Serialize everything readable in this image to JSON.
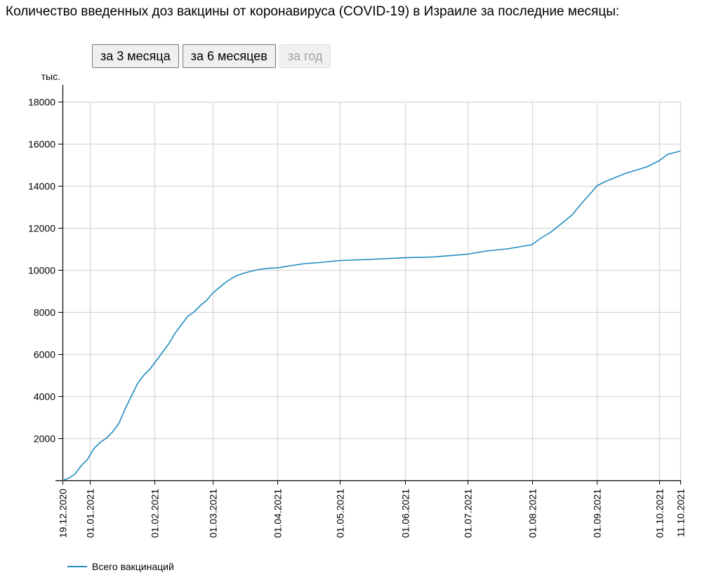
{
  "page": {
    "title": "Количество введенных доз вакцины от коронавируса (COVID-19) в Израиле за последние месяцы:"
  },
  "range_buttons": [
    {
      "label": "за 3 месяца",
      "disabled": false
    },
    {
      "label": "за 6 месяцев",
      "disabled": false
    },
    {
      "label": "за год",
      "disabled": true
    }
  ],
  "colors": {
    "series": "#1f8bbf",
    "grid": "#d7d7d7",
    "axis": "#000000"
  },
  "chart_data": {
    "type": "line",
    "title": "",
    "xlabel": "",
    "ylabel": "тыс.",
    "x_type": "date",
    "xlim": [
      "2020-12-19",
      "2021-10-11"
    ],
    "ylim": [
      0,
      18000
    ],
    "y_ticks": [
      2000,
      4000,
      6000,
      8000,
      10000,
      12000,
      14000,
      16000,
      18000
    ],
    "y_tick_labels": [
      "2000",
      "4000",
      "6000",
      "8000",
      "10000",
      "12000",
      "14000",
      "16000",
      "18000"
    ],
    "x_ticks": [
      "2020-12-19",
      "2021-01-01",
      "2021-02-01",
      "2021-03-01",
      "2021-04-01",
      "2021-05-01",
      "2021-06-01",
      "2021-07-01",
      "2021-08-01",
      "2021-09-01",
      "2021-10-01",
      "2021-10-11"
    ],
    "x_tick_labels": [
      "19.12.2020",
      "01.01.2021",
      "01.02.2021",
      "01.03.2021",
      "01.04.2021",
      "01.05.2021",
      "01.06.2021",
      "01.07.2021",
      "01.08.2021",
      "01.09.2021",
      "01.10.2021",
      "11.10.2021"
    ],
    "grid": true,
    "legend": "bottom-left",
    "series": [
      {
        "name": "Всего вакцинаций",
        "x": [
          "2020-12-19",
          "2020-12-22",
          "2020-12-25",
          "2020-12-28",
          "2020-12-31",
          "2021-01-03",
          "2021-01-06",
          "2021-01-09",
          "2021-01-12",
          "2021-01-15",
          "2021-01-18",
          "2021-01-21",
          "2021-01-24",
          "2021-01-27",
          "2021-01-30",
          "2021-02-02",
          "2021-02-05",
          "2021-02-08",
          "2021-02-11",
          "2021-02-14",
          "2021-02-17",
          "2021-02-20",
          "2021-02-23",
          "2021-02-26",
          "2021-03-01",
          "2021-03-04",
          "2021-03-07",
          "2021-03-10",
          "2021-03-13",
          "2021-03-16",
          "2021-03-19",
          "2021-03-22",
          "2021-03-25",
          "2021-03-28",
          "2021-04-01",
          "2021-04-07",
          "2021-04-14",
          "2021-04-21",
          "2021-05-01",
          "2021-05-15",
          "2021-06-01",
          "2021-06-15",
          "2021-07-01",
          "2021-07-10",
          "2021-07-20",
          "2021-08-01",
          "2021-08-05",
          "2021-08-10",
          "2021-08-15",
          "2021-08-20",
          "2021-08-25",
          "2021-08-30",
          "2021-09-01",
          "2021-09-05",
          "2021-09-10",
          "2021-09-15",
          "2021-09-20",
          "2021-09-25",
          "2021-10-01",
          "2021-10-05",
          "2021-10-11"
        ],
        "values": [
          0,
          100,
          300,
          700,
          1000,
          1500,
          1800,
          2000,
          2300,
          2700,
          3400,
          4000,
          4600,
          5000,
          5300,
          5700,
          6100,
          6500,
          7000,
          7400,
          7800,
          8000,
          8300,
          8550,
          8900,
          9150,
          9400,
          9600,
          9750,
          9850,
          9930,
          10000,
          10050,
          10080,
          10100,
          10200,
          10300,
          10350,
          10450,
          10500,
          10580,
          10620,
          10750,
          10900,
          11000,
          11200,
          11500,
          11800,
          12200,
          12600,
          13200,
          13750,
          14000,
          14200,
          14400,
          14600,
          14750,
          14900,
          15200,
          15500,
          15650
        ]
      }
    ]
  }
}
